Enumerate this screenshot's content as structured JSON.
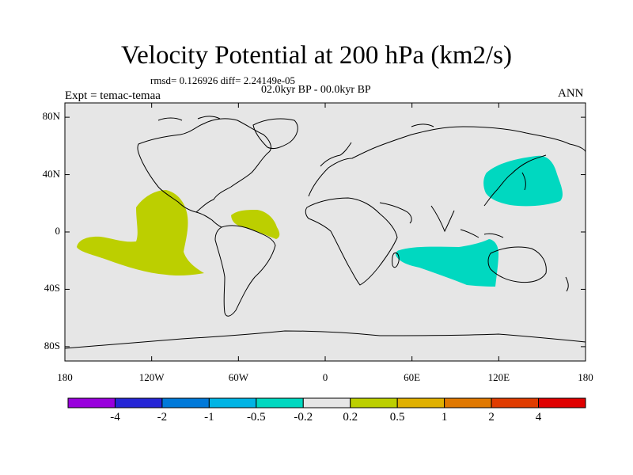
{
  "title": "Velocity Potential at 200 hPa (km2/s)",
  "rmsd_text": "rmsd= 0.126926 diff= 2.24149e-05",
  "period_text": "02.0kyr BP - 00.0kyr BP",
  "experiment_text": "Expt = temac-temaa",
  "season_text": "ANN",
  "map": {
    "lon_range": [
      -180,
      180
    ],
    "lat_range": [
      -90,
      90
    ],
    "x_ticks": [
      -180,
      -120,
      -60,
      0,
      60,
      120,
      180
    ],
    "x_tick_labels": [
      "180",
      "120W",
      "60W",
      "0",
      "60E",
      "120E",
      "180"
    ],
    "y_ticks": [
      80,
      40,
      0,
      -40,
      -80
    ],
    "y_tick_labels": [
      "80N",
      "40N",
      "0",
      "40S",
      "80S"
    ],
    "background_color": "#e6e6e6",
    "regions": [
      {
        "name": "east-pacific-positive",
        "level_color": "#bccf00"
      },
      {
        "name": "north-atlantic-positive",
        "level_color": "#bccf00"
      },
      {
        "name": "northwest-pacific-negative",
        "level_color": "#00d8c0"
      },
      {
        "name": "indian-ocean-negative",
        "level_color": "#00d8c0"
      }
    ]
  },
  "colorbar": {
    "colors": [
      "#9900dd",
      "#2626d6",
      "#0079d9",
      "#00b4e4",
      "#00d8c0",
      "#e6e6e6",
      "#bccf00",
      "#e0b000",
      "#e07800",
      "#e03c00",
      "#e00000"
    ],
    "labels": [
      "-4",
      "-2",
      "-1",
      "-0.5",
      "-0.2",
      "0.2",
      "0.5",
      "1",
      "2",
      "4"
    ]
  }
}
